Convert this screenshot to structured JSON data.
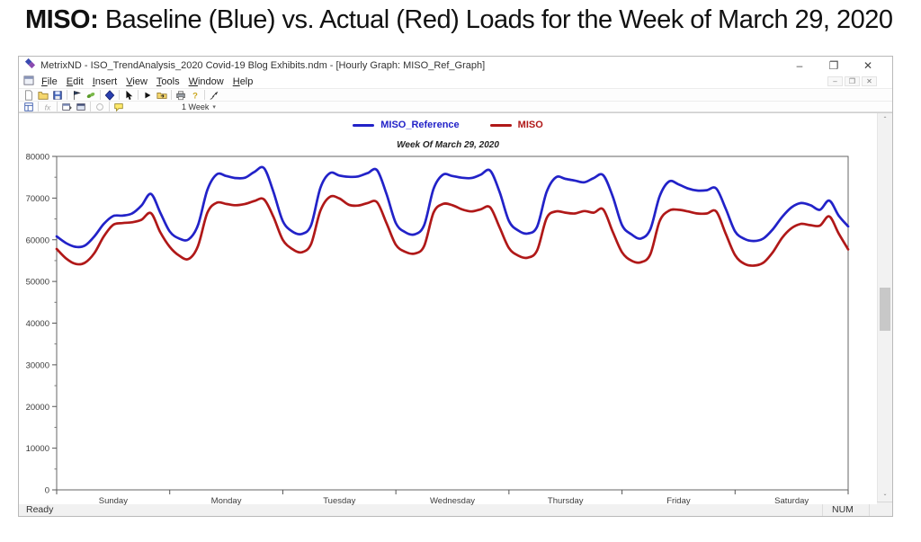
{
  "page": {
    "heading_bold": "MISO:",
    "heading_rest": " Baseline (Blue) vs. Actual (Red) Loads for the Week of March 29, 2020"
  },
  "window": {
    "title": "MetrixND - ISO_TrendAnalysis_2020 Covid-19 Blog Exhibits.ndm - [Hourly Graph: MISO_Ref_Graph]",
    "menu": [
      "File",
      "Edit",
      "Insert",
      "View",
      "Tools",
      "Window",
      "Help"
    ],
    "window_buttons": {
      "minimize": "–",
      "restore": "❐",
      "close": "✕"
    },
    "mdi_buttons": {
      "minimize": "–",
      "restore": "❐",
      "close": "✕"
    },
    "toolbar": {
      "row1_icons": [
        "new-file",
        "open-file",
        "save",
        "flag",
        "paste",
        "navigator",
        "pointer",
        "run",
        "export",
        "print",
        "help",
        "select"
      ],
      "row2_icons": [
        "properties",
        "formula",
        "window-restore",
        "window-view",
        "refresh",
        "comment"
      ],
      "range_label": "1 Week",
      "range_caret": "▾"
    },
    "status_left": "Ready",
    "status_right": "NUM"
  },
  "scrollbar": {
    "up_arrow": "▲",
    "down_arrow": "▼"
  },
  "chart_data": {
    "type": "line",
    "title": "Week Of March 29, 2020",
    "x_unit": "hours",
    "x_range": [
      0,
      168
    ],
    "sample_interval_hours": 2,
    "ylim": [
      0,
      80000
    ],
    "y_ticks": [
      0,
      10000,
      20000,
      30000,
      40000,
      50000,
      60000,
      70000,
      80000
    ],
    "y_minor_tick_step": 5000,
    "x_tick_interval_hours": 24,
    "grid": false,
    "legend_position": "top-center",
    "day_labels": [
      "Sunday",
      "Monday",
      "Tuesday",
      "Wednesday",
      "Thursday",
      "Friday",
      "Saturday"
    ],
    "series": [
      {
        "name": "MISO_Reference",
        "color": "#2222c8",
        "values": [
          60800,
          59200,
          58300,
          58600,
          60800,
          63800,
          65700,
          65800,
          66300,
          68200,
          71000,
          66500,
          62000,
          60300,
          60100,
          63500,
          72000,
          75700,
          75300,
          74800,
          74900,
          76300,
          77200,
          71500,
          64500,
          62000,
          61400,
          63500,
          72500,
          76000,
          75400,
          75100,
          75200,
          76000,
          76700,
          71000,
          64000,
          61800,
          61300,
          63500,
          72200,
          75600,
          75300,
          74900,
          74800,
          75600,
          76600,
          71500,
          64500,
          62200,
          61500,
          63200,
          71500,
          75000,
          74600,
          74200,
          73800,
          74800,
          75500,
          70500,
          63500,
          61300,
          60300,
          62500,
          70500,
          74000,
          73300,
          72300,
          71800,
          71900,
          72300,
          67500,
          62000,
          60200,
          59700,
          60300,
          62500,
          65500,
          67800,
          68800,
          68300,
          67200,
          69400,
          65800,
          63200
        ]
      },
      {
        "name": "MISO",
        "color": "#b01818",
        "values": [
          57800,
          55500,
          54200,
          54500,
          56800,
          60800,
          63600,
          64000,
          64200,
          64800,
          66400,
          61800,
          58300,
          56200,
          55400,
          58500,
          66500,
          68900,
          68600,
          68300,
          68600,
          69300,
          69700,
          65500,
          60000,
          57800,
          57000,
          59000,
          67000,
          70300,
          69900,
          68400,
          68200,
          68800,
          69000,
          64000,
          58800,
          57100,
          56700,
          58500,
          66500,
          68600,
          68300,
          67300,
          66800,
          67300,
          67800,
          63000,
          58000,
          56200,
          55700,
          57500,
          65200,
          66800,
          66500,
          66300,
          66900,
          66500,
          67300,
          62000,
          57000,
          55000,
          54600,
          56500,
          64500,
          67000,
          67200,
          66800,
          66300,
          66300,
          66800,
          61500,
          56300,
          54200,
          53800,
          54500,
          57000,
          60500,
          62800,
          63800,
          63500,
          63400,
          65600,
          61500,
          57700
        ]
      }
    ]
  }
}
